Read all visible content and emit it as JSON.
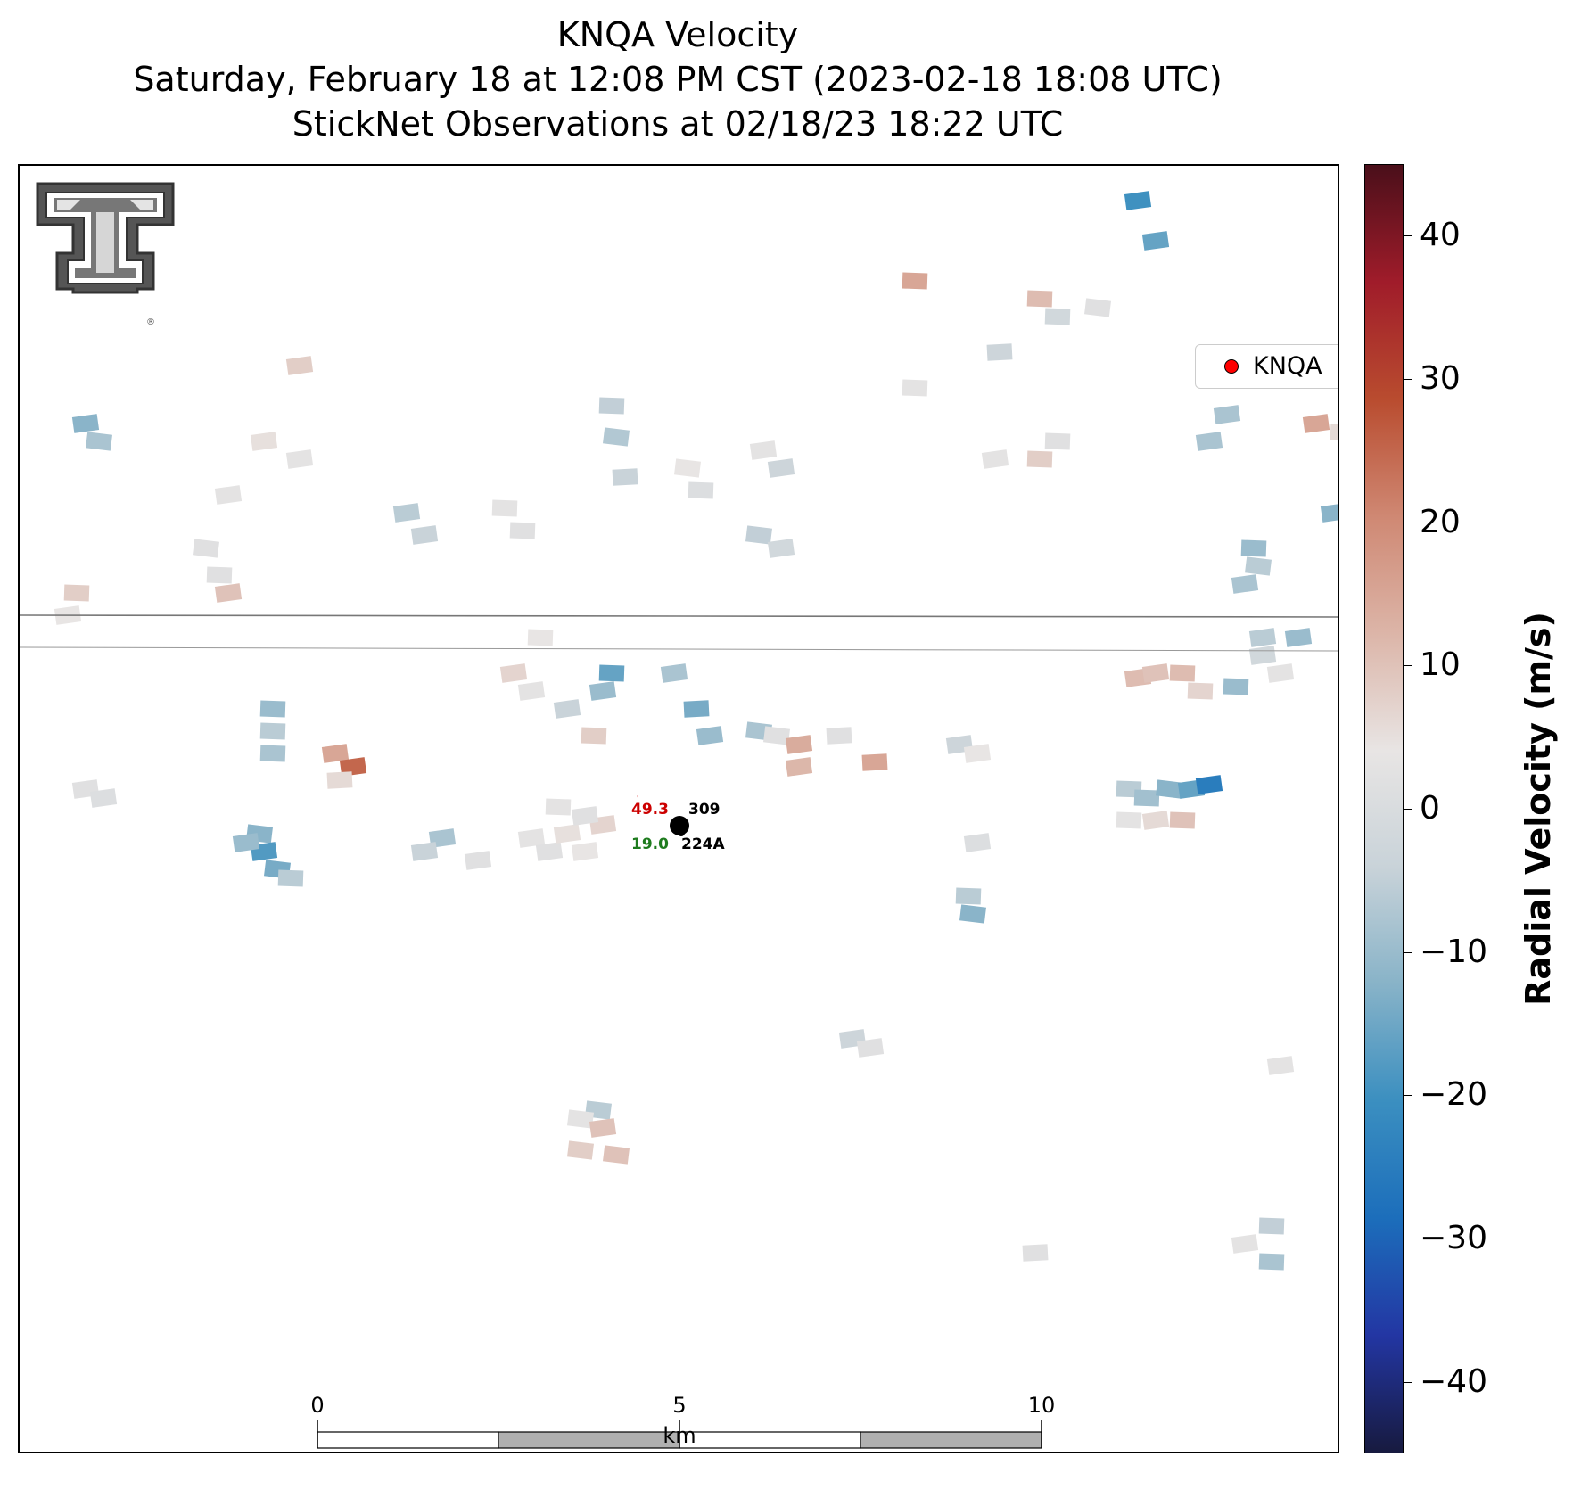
{
  "titles": {
    "line1": "KNQA Velocity",
    "line2": "Saturday, February 18 at 12:08 PM CST (2023-02-18 18:08 UTC)",
    "line3": "StickNet Observations at 02/18/23 18:22 UTC"
  },
  "legend": {
    "label": "KNQA",
    "marker_color": "#ff0000"
  },
  "colorbar": {
    "title": "Radial Velocity (m/s)",
    "range": [
      -45,
      45
    ],
    "ticks": [
      40,
      30,
      20,
      10,
      0,
      -10,
      -20,
      -30,
      -40
    ],
    "tick_labels": [
      "40",
      "30",
      "20",
      "10",
      "0",
      "−10",
      "−20",
      "−30",
      "−40"
    ],
    "colormap": [
      "#171a3f",
      "#2336a3",
      "#1c6ebb",
      "#3b8fc0",
      "#88b3c8",
      "#c9d3d9",
      "#e8e5e4",
      "#dcb5a8",
      "#cf8873",
      "#b94c2f",
      "#a01c2a",
      "#4a0f1a"
    ]
  },
  "observation": {
    "station_top": "309",
    "station_bottom": "224A",
    "temperature": "49.3",
    "dewpoint": "19.0",
    "temperature_color": "#cc0000",
    "dewpoint_color": "#1e7b1e"
  },
  "scalebar": {
    "labels": [
      "0",
      "5",
      "10"
    ],
    "unit": "km"
  },
  "logo": {
    "name": "Texas Tech Double T",
    "trademark": "®"
  }
}
